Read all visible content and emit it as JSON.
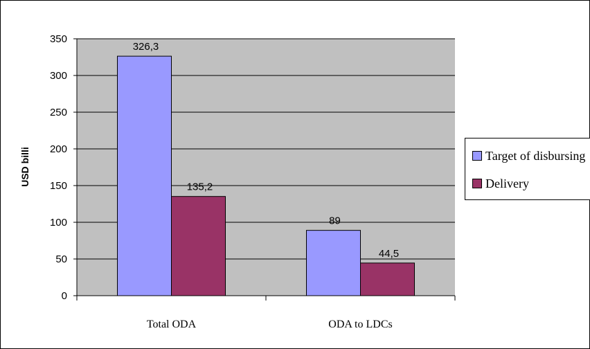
{
  "chart_data": {
    "type": "bar",
    "categories": [
      "Total ODA",
      "ODA to LDCs"
    ],
    "series": [
      {
        "name": "Target of disbursing",
        "color": "#9999ff",
        "values": [
          326.3,
          89
        ]
      },
      {
        "name": "Delivery",
        "color": "#993366",
        "values": [
          135.2,
          44.5
        ]
      }
    ],
    "data_labels": [
      [
        "326,3",
        "89"
      ],
      [
        "135,2",
        "44,5"
      ]
    ],
    "ylabel": "USD billi",
    "ylim": [
      0,
      350
    ],
    "yticks": [
      "0",
      "50",
      "100",
      "150",
      "200",
      "250",
      "300",
      "350"
    ],
    "grid": true,
    "plot_background": "#c0c0c0",
    "legend_position": "right"
  }
}
